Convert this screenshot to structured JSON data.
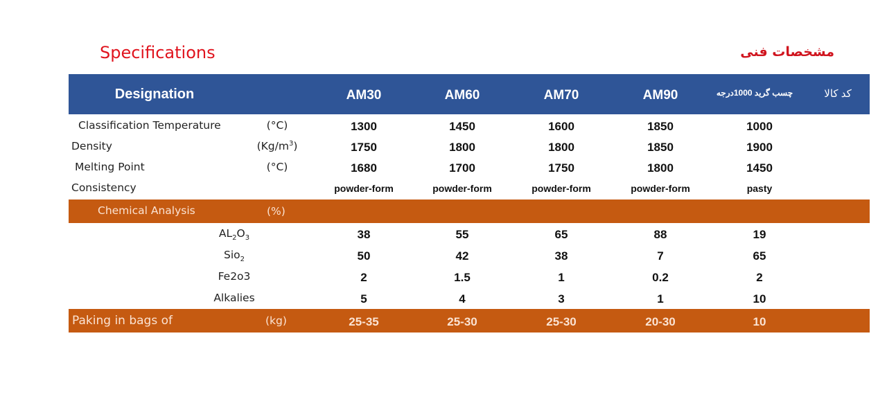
{
  "title": "Specifications",
  "title_fa": "مشخصات فنی",
  "header": {
    "designation": "Designation",
    "columns": [
      "AM30",
      "AM60",
      "AM70",
      "AM90",
      "چسب گرید 1000درجه"
    ],
    "code_label": "کد کالا"
  },
  "properties": [
    {
      "label": "Classification Temperature",
      "unit": "(°C)",
      "values": [
        "1300",
        "1450",
        "1600",
        "1850",
        "1000"
      ]
    },
    {
      "label": "Density",
      "unit": "(Kg/m",
      "unit_sup": "3",
      "unit_end": ")",
      "values": [
        "1750",
        "1800",
        "1800",
        "1850",
        "1900"
      ]
    },
    {
      "label": "Melting Point",
      "unit": "(°C)",
      "values": [
        "1680",
        "1700",
        "1750",
        "1800",
        "1450"
      ]
    },
    {
      "label": "Consistency",
      "unit": "",
      "values": [
        "powder-form",
        "powder-form",
        "powder-form",
        "powder-form",
        "pasty"
      ]
    }
  ],
  "chemical": {
    "label": "Chemical Analysis",
    "unit": "(%)"
  },
  "chem_rows": [
    {
      "parts": [
        {
          "t": "AL"
        },
        {
          "t": "2",
          "sub": true
        },
        {
          "t": "O"
        },
        {
          "t": "3",
          "sub": true
        }
      ],
      "values": [
        "38",
        "55",
        "65",
        "88",
        "19"
      ]
    },
    {
      "parts": [
        {
          "t": "Sio"
        },
        {
          "t": "2",
          "sub": true
        }
      ],
      "values": [
        "50",
        "42",
        "38",
        "7",
        "65"
      ]
    },
    {
      "parts": [
        {
          "t": "Fe2o3"
        }
      ],
      "values": [
        "2",
        "1.5",
        "1",
        "0.2",
        "2"
      ]
    },
    {
      "parts": [
        {
          "t": "Alkalies"
        }
      ],
      "values": [
        "5",
        "4",
        "3",
        "1",
        "10"
      ]
    }
  ],
  "packing": {
    "label": "Paking in bags of",
    "unit": "(kg)",
    "values": [
      "25-35",
      "25-30",
      "25-30",
      "20-30",
      "10"
    ]
  },
  "colors": {
    "header_blue": "#2f5597",
    "band_orange": "#c55a11",
    "title_red": "#e0141e"
  }
}
